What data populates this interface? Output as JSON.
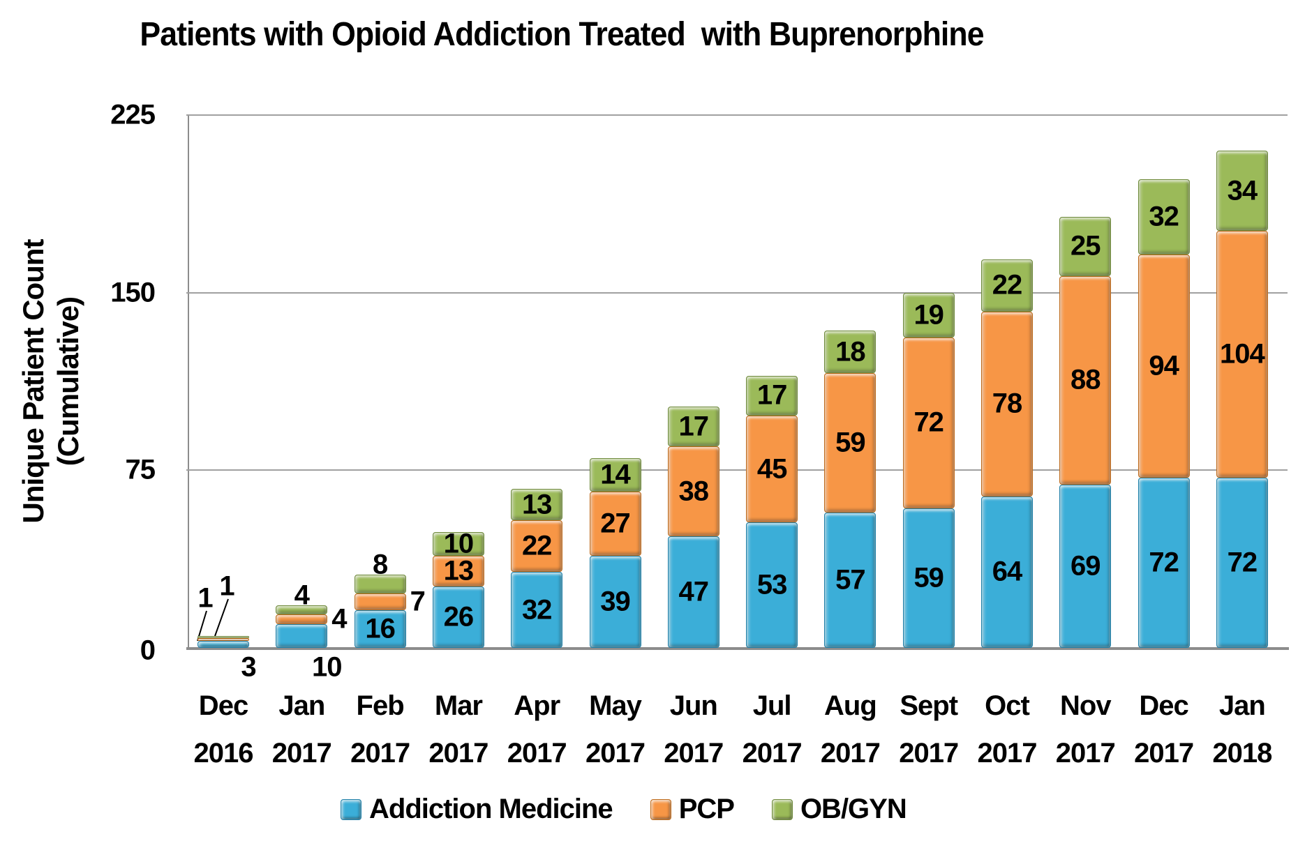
{
  "title": "Patients with Opioid Addiction Treated  with Buprenorphine",
  "y_axis": {
    "title_line1": "Unique Patient Count",
    "title_line2": "(Cumulative)",
    "ticks": [
      0,
      75,
      150,
      225
    ]
  },
  "chart_data": {
    "type": "bar",
    "stacked": true,
    "title": "Patients with Opioid Addiction Treated  with Buprenorphine",
    "ylabel": "Unique Patient Count (Cumulative)",
    "ylim": [
      0,
      225
    ],
    "gridlines": [
      75,
      150,
      225
    ],
    "grid": true,
    "legend_position": "bottom",
    "categories": [
      {
        "month": "Dec",
        "year": "2016"
      },
      {
        "month": "Jan",
        "year": "2017"
      },
      {
        "month": "Feb",
        "year": "2017"
      },
      {
        "month": "Mar",
        "year": "2017"
      },
      {
        "month": "Apr",
        "year": "2017"
      },
      {
        "month": "May",
        "year": "2017"
      },
      {
        "month": "Jun",
        "year": "2017"
      },
      {
        "month": "Jul",
        "year": "2017"
      },
      {
        "month": "Aug",
        "year": "2017"
      },
      {
        "month": "Sept",
        "year": "2017"
      },
      {
        "month": "Oct",
        "year": "2017"
      },
      {
        "month": "Nov",
        "year": "2017"
      },
      {
        "month": "Dec",
        "year": "2017"
      },
      {
        "month": "Jan",
        "year": "2018"
      }
    ],
    "series": [
      {
        "name": "Addiction Medicine",
        "color": "#3BAED8",
        "border_color": "#1E7FA8",
        "values": [
          3,
          10,
          16,
          26,
          32,
          39,
          47,
          53,
          57,
          59,
          64,
          69,
          72,
          72
        ]
      },
      {
        "name": "PCP",
        "color": "#F79646",
        "border_color": "#BE6A1A",
        "values": [
          1,
          4,
          7,
          13,
          22,
          27,
          38,
          45,
          59,
          72,
          78,
          88,
          94,
          104
        ]
      },
      {
        "name": "OB/GYN",
        "color": "#9BBA59",
        "border_color": "#6E8A3B",
        "values": [
          1,
          4,
          8,
          10,
          13,
          14,
          17,
          17,
          18,
          19,
          22,
          25,
          32,
          34
        ]
      }
    ],
    "label_placements": {
      "0": {
        "0": "below-axis",
        "1": "callout",
        "2": "callout"
      },
      "1": {
        "0": "below-axis",
        "1": "right",
        "2": "above"
      },
      "2": {
        "1": "right",
        "2": "above"
      }
    },
    "axis_color": "#8C8C8C",
    "gridline_color": "#A0A0A0",
    "label_color": "#000000"
  }
}
